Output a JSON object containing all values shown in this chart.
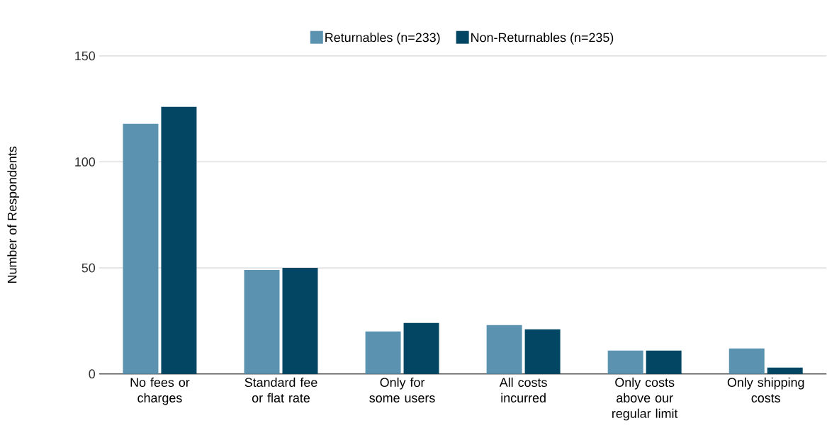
{
  "chart_data": {
    "type": "bar",
    "ylabel": "Number of Respondents",
    "categories": [
      "No fees or charges",
      "Standard fee or flat rate",
      "Only for some users",
      "All costs incurred",
      "Only costs above our regular limit",
      "Only shipping costs"
    ],
    "series": [
      {
        "name": "Returnables (n=233)",
        "color": "#5a92b0",
        "values": [
          118,
          49,
          20,
          23,
          11,
          12
        ]
      },
      {
        "name": "Non-Returnables (n=235)",
        "color": "#034663",
        "values": [
          126,
          50,
          24,
          21,
          11,
          3
        ]
      }
    ],
    "ylim": [
      0,
      150
    ],
    "yticks": [
      0,
      50,
      100,
      150
    ],
    "grid": "y",
    "legend": "top"
  }
}
